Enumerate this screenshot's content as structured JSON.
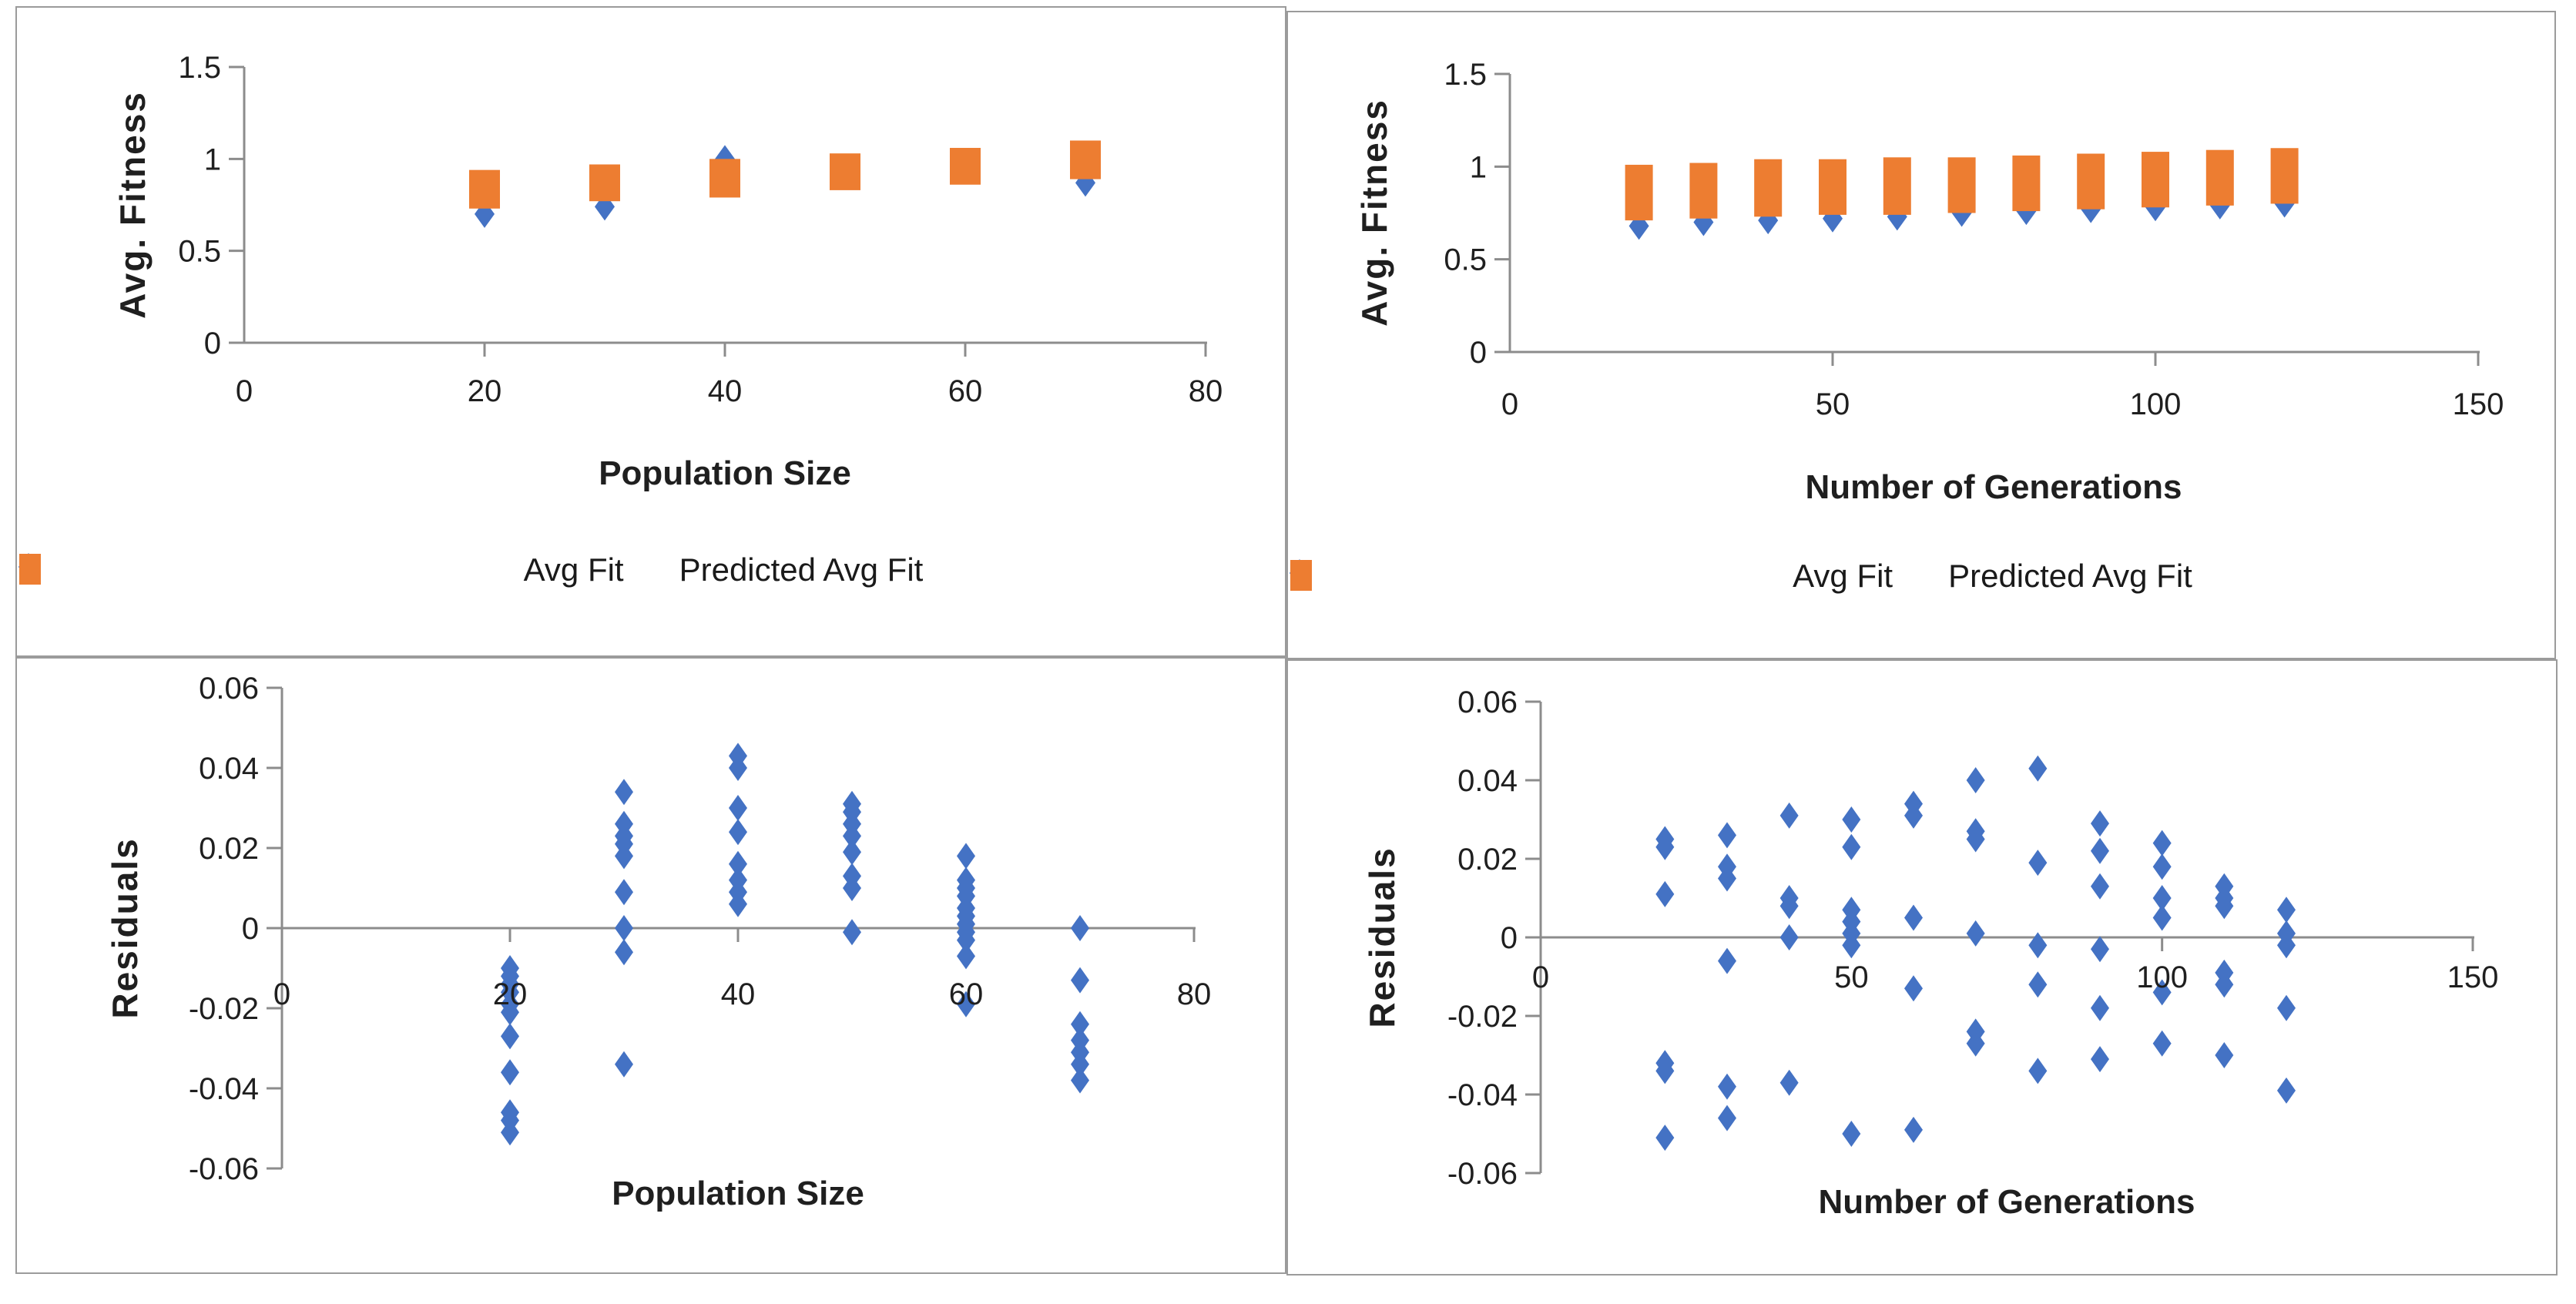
{
  "page": {
    "background": "#ffffff",
    "border_color": "#9b9b9b"
  },
  "colors": {
    "avg_fit": "#4472C4",
    "predicted": "#ED7D31",
    "axis": "#8c8c8c",
    "text": "#1f1f1f"
  },
  "legend": {
    "avg_fit_label": "Avg Fit",
    "predicted_label": "Predicted Avg Fit"
  },
  "chart_data": [
    {
      "id": "avg-fitness-vs-population-size",
      "type": "scatter",
      "title": "",
      "xlabel": "Population Size",
      "ylabel": "Avg. Fitness",
      "xlim": [
        0,
        80
      ],
      "ylim": [
        0,
        1.5
      ],
      "xticks": [
        "0",
        "20",
        "40",
        "60",
        "80"
      ],
      "yticks": [
        "0",
        "0.5",
        "1",
        "1.5"
      ],
      "grid": false,
      "legend_position": "bottom",
      "series": [
        {
          "name": "Avg Fit",
          "marker": "diamond",
          "color": "#4472C4",
          "points": [
            [
              20,
              0.7
            ],
            [
              30,
              0.74
            ],
            [
              40,
              1.0
            ],
            [
              70,
              0.87
            ]
          ]
        },
        {
          "name": "Predicted Avg Fit",
          "marker": "square",
          "color": "#ED7D31",
          "range_representation": "column of overlapping square markers from min to max",
          "ranges": [
            [
              20,
              0.73,
              0.94
            ],
            [
              30,
              0.77,
              0.97
            ],
            [
              40,
              0.79,
              1.0
            ],
            [
              50,
              0.83,
              1.03
            ],
            [
              60,
              0.86,
              1.06
            ],
            [
              70,
              0.89,
              1.1
            ]
          ]
        }
      ]
    },
    {
      "id": "avg-fitness-vs-number-of-generations",
      "type": "scatter",
      "title": "",
      "xlabel": "Number of Generations",
      "ylabel": "Avg. Fitness",
      "xlim": [
        0,
        150
      ],
      "ylim": [
        0,
        1.5
      ],
      "xticks": [
        "0",
        "50",
        "100",
        "150"
      ],
      "yticks": [
        "0",
        "0.5",
        "1",
        "1.5"
      ],
      "grid": false,
      "legend_position": "bottom",
      "series": [
        {
          "name": "Avg Fit",
          "marker": "diamond",
          "color": "#4472C4",
          "points": [
            [
              20,
              0.68
            ],
            [
              30,
              0.7
            ],
            [
              40,
              0.71
            ],
            [
              50,
              0.72
            ],
            [
              60,
              0.73
            ],
            [
              70,
              0.75
            ],
            [
              80,
              0.76
            ],
            [
              90,
              0.77
            ],
            [
              100,
              0.78
            ],
            [
              110,
              0.79
            ],
            [
              120,
              0.8
            ]
          ]
        },
        {
          "name": "Predicted Avg Fit",
          "marker": "square",
          "color": "#ED7D31",
          "range_representation": "column of overlapping square markers from min to max",
          "ranges": [
            [
              20,
              0.71,
              1.01
            ],
            [
              30,
              0.72,
              1.02
            ],
            [
              40,
              0.73,
              1.04
            ],
            [
              50,
              0.74,
              1.04
            ],
            [
              60,
              0.74,
              1.05
            ],
            [
              70,
              0.75,
              1.05
            ],
            [
              80,
              0.76,
              1.06
            ],
            [
              90,
              0.77,
              1.07
            ],
            [
              100,
              0.78,
              1.08
            ],
            [
              110,
              0.79,
              1.09
            ],
            [
              120,
              0.8,
              1.1
            ]
          ]
        }
      ]
    },
    {
      "id": "residuals-vs-population-size",
      "type": "scatter",
      "title": "",
      "xlabel": "Population Size",
      "ylabel": "Residuals",
      "xlim": [
        0,
        80
      ],
      "ylim": [
        -0.06,
        0.06
      ],
      "xticks": [
        "0",
        "20",
        "40",
        "60",
        "80"
      ],
      "yticks": [
        "-0.06",
        "-0.04",
        "-0.02",
        "0",
        "0.02",
        "0.04",
        "0.06"
      ],
      "grid": false,
      "legend_position": "none",
      "series": [
        {
          "name": "Residuals",
          "marker": "diamond",
          "color": "#4472C4",
          "points": [
            [
              20,
              -0.01
            ],
            [
              20,
              -0.012
            ],
            [
              20,
              -0.014
            ],
            [
              20,
              -0.016
            ],
            [
              20,
              -0.019
            ],
            [
              20,
              -0.021
            ],
            [
              20,
              -0.027
            ],
            [
              20,
              -0.036
            ],
            [
              20,
              -0.046
            ],
            [
              20,
              -0.048
            ],
            [
              20,
              -0.051
            ],
            [
              30,
              0.034
            ],
            [
              30,
              0.026
            ],
            [
              30,
              0.023
            ],
            [
              30,
              0.021
            ],
            [
              30,
              0.018
            ],
            [
              30,
              0.009
            ],
            [
              30,
              0.0
            ],
            [
              30,
              -0.006
            ],
            [
              30,
              -0.034
            ],
            [
              40,
              0.043
            ],
            [
              40,
              0.04
            ],
            [
              40,
              0.03
            ],
            [
              40,
              0.024
            ],
            [
              40,
              0.016
            ],
            [
              40,
              0.012
            ],
            [
              40,
              0.009
            ],
            [
              40,
              0.006
            ],
            [
              50,
              0.031
            ],
            [
              50,
              0.029
            ],
            [
              50,
              0.026
            ],
            [
              50,
              0.023
            ],
            [
              50,
              0.019
            ],
            [
              50,
              0.013
            ],
            [
              50,
              0.01
            ],
            [
              50,
              -0.001
            ],
            [
              60,
              0.018
            ],
            [
              60,
              0.012
            ],
            [
              60,
              0.01
            ],
            [
              60,
              0.008
            ],
            [
              60,
              0.005
            ],
            [
              60,
              0.003
            ],
            [
              60,
              0.001
            ],
            [
              60,
              -0.001
            ],
            [
              60,
              -0.003
            ],
            [
              60,
              -0.007
            ],
            [
              60,
              -0.019
            ],
            [
              70,
              0.0
            ],
            [
              70,
              -0.013
            ],
            [
              70,
              -0.024
            ],
            [
              70,
              -0.028
            ],
            [
              70,
              -0.031
            ],
            [
              70,
              -0.034
            ],
            [
              70,
              -0.038
            ]
          ]
        }
      ]
    },
    {
      "id": "residuals-vs-number-of-generations",
      "type": "scatter",
      "title": "",
      "xlabel": "Number of Generations",
      "ylabel": "Residuals",
      "xlim": [
        0,
        150
      ],
      "ylim": [
        -0.06,
        0.06
      ],
      "xticks": [
        "0",
        "50",
        "100",
        "150"
      ],
      "yticks": [
        "-0.06",
        "-0.04",
        "-0.02",
        "0",
        "0.02",
        "0.04",
        "0.06"
      ],
      "grid": false,
      "legend_position": "none",
      "series": [
        {
          "name": "Residuals",
          "marker": "diamond",
          "color": "#4472C4",
          "points": [
            [
              20,
              0.025
            ],
            [
              20,
              0.023
            ],
            [
              20,
              0.011
            ],
            [
              20,
              -0.032
            ],
            [
              20,
              -0.034
            ],
            [
              20,
              -0.051
            ],
            [
              30,
              0.026
            ],
            [
              30,
              0.018
            ],
            [
              30,
              0.015
            ],
            [
              30,
              -0.006
            ],
            [
              30,
              -0.038
            ],
            [
              30,
              -0.046
            ],
            [
              40,
              0.031
            ],
            [
              40,
              0.01
            ],
            [
              40,
              0.008
            ],
            [
              40,
              0.0
            ],
            [
              40,
              -0.037
            ],
            [
              50,
              0.03
            ],
            [
              50,
              0.023
            ],
            [
              50,
              0.007
            ],
            [
              50,
              0.004
            ],
            [
              50,
              0.001
            ],
            [
              50,
              -0.002
            ],
            [
              50,
              -0.05
            ],
            [
              60,
              0.034
            ],
            [
              60,
              0.031
            ],
            [
              60,
              0.005
            ],
            [
              60,
              -0.013
            ],
            [
              60,
              -0.049
            ],
            [
              70,
              0.04
            ],
            [
              70,
              0.027
            ],
            [
              70,
              0.025
            ],
            [
              70,
              0.001
            ],
            [
              70,
              -0.024
            ],
            [
              70,
              -0.027
            ],
            [
              80,
              0.043
            ],
            [
              80,
              0.019
            ],
            [
              80,
              -0.002
            ],
            [
              80,
              -0.012
            ],
            [
              80,
              -0.034
            ],
            [
              90,
              0.029
            ],
            [
              90,
              0.022
            ],
            [
              90,
              0.013
            ],
            [
              90,
              -0.003
            ],
            [
              90,
              -0.018
            ],
            [
              90,
              -0.031
            ],
            [
              100,
              0.024
            ],
            [
              100,
              0.018
            ],
            [
              100,
              0.01
            ],
            [
              100,
              0.005
            ],
            [
              100,
              -0.014
            ],
            [
              100,
              -0.027
            ],
            [
              110,
              0.013
            ],
            [
              110,
              0.01
            ],
            [
              110,
              0.008
            ],
            [
              110,
              -0.009
            ],
            [
              110,
              -0.012
            ],
            [
              110,
              -0.03
            ],
            [
              120,
              0.007
            ],
            [
              120,
              0.001
            ],
            [
              120,
              -0.002
            ],
            [
              120,
              -0.018
            ],
            [
              120,
              -0.039
            ]
          ]
        }
      ]
    }
  ]
}
